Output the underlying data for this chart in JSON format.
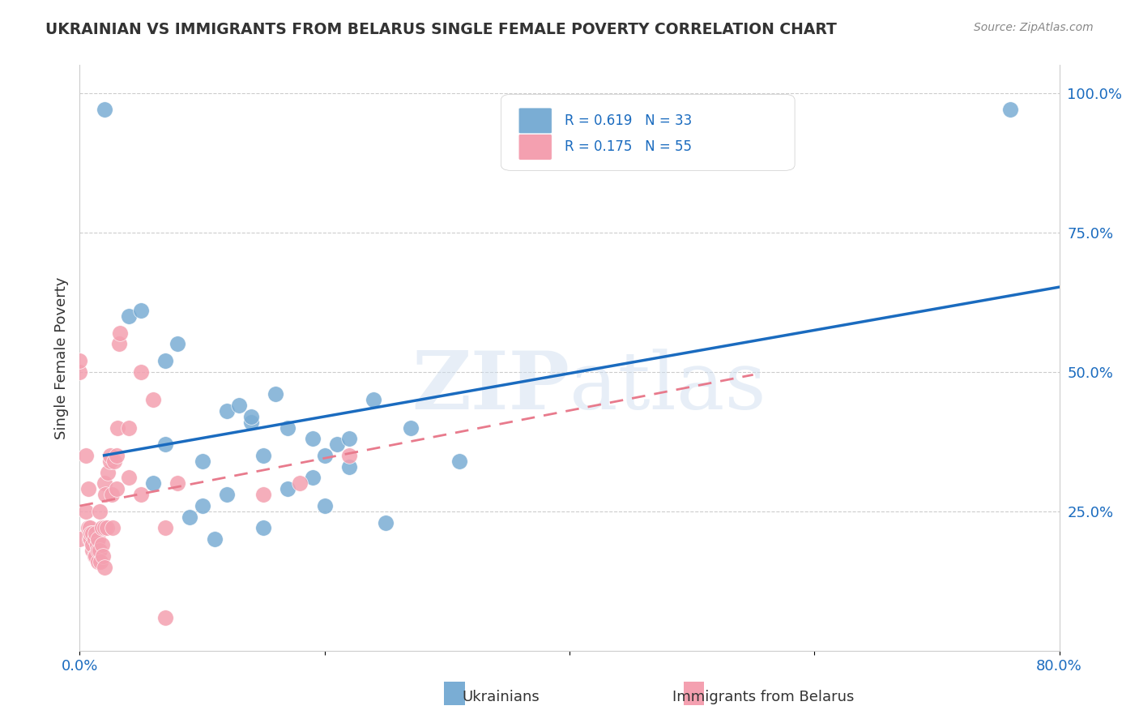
{
  "title": "UKRAINIAN VS IMMIGRANTS FROM BELARUS SINGLE FEMALE POVERTY CORRELATION CHART",
  "source": "Source: ZipAtlas.com",
  "xlabel": "",
  "ylabel": "Single Female Poverty",
  "xlim": [
    0.0,
    0.8
  ],
  "ylim": [
    0.0,
    1.05
  ],
  "xticks": [
    0.0,
    0.2,
    0.4,
    0.6,
    0.8
  ],
  "xticklabels": [
    "0.0%",
    "",
    "",
    "",
    "80.0%"
  ],
  "yticks_right": [
    0.25,
    0.5,
    0.75,
    1.0
  ],
  "yticklabels_right": [
    "25.0%",
    "50.0%",
    "75.0%",
    "100.0%"
  ],
  "grid_color": "#cccccc",
  "background_color": "#ffffff",
  "blue_color": "#7aadd4",
  "pink_color": "#f4a0b0",
  "blue_line_color": "#1a6bbf",
  "pink_line_color": "#e87a8c",
  "R_blue": 0.619,
  "N_blue": 33,
  "R_pink": 0.175,
  "N_pink": 55,
  "legend_labels": [
    "Ukrainians",
    "Immigrants from Belarus"
  ],
  "watermark": "ZIPatlas",
  "blue_points_x": [
    0.02,
    0.04,
    0.05,
    0.06,
    0.07,
    0.07,
    0.08,
    0.09,
    0.1,
    0.1,
    0.11,
    0.12,
    0.12,
    0.13,
    0.14,
    0.14,
    0.15,
    0.15,
    0.16,
    0.17,
    0.17,
    0.19,
    0.19,
    0.2,
    0.2,
    0.21,
    0.22,
    0.22,
    0.24,
    0.25,
    0.27,
    0.31,
    0.76
  ],
  "blue_points_y": [
    0.97,
    0.6,
    0.61,
    0.3,
    0.37,
    0.52,
    0.55,
    0.24,
    0.26,
    0.34,
    0.2,
    0.28,
    0.43,
    0.44,
    0.41,
    0.42,
    0.22,
    0.35,
    0.46,
    0.29,
    0.4,
    0.31,
    0.38,
    0.26,
    0.35,
    0.37,
    0.38,
    0.33,
    0.45,
    0.23,
    0.4,
    0.34,
    0.97
  ],
  "pink_points_x": [
    0.0,
    0.0,
    0.0,
    0.005,
    0.005,
    0.007,
    0.007,
    0.008,
    0.008,
    0.009,
    0.009,
    0.01,
    0.01,
    0.01,
    0.012,
    0.012,
    0.013,
    0.013,
    0.014,
    0.015,
    0.015,
    0.015,
    0.016,
    0.016,
    0.017,
    0.018,
    0.018,
    0.019,
    0.02,
    0.02,
    0.02,
    0.021,
    0.022,
    0.023,
    0.025,
    0.025,
    0.026,
    0.027,
    0.028,
    0.03,
    0.03,
    0.031,
    0.032,
    0.033,
    0.04,
    0.04,
    0.05,
    0.05,
    0.06,
    0.07,
    0.07,
    0.08,
    0.15,
    0.18,
    0.22
  ],
  "pink_points_y": [
    0.5,
    0.52,
    0.2,
    0.35,
    0.25,
    0.22,
    0.29,
    0.2,
    0.22,
    0.2,
    0.21,
    0.18,
    0.19,
    0.21,
    0.17,
    0.2,
    0.17,
    0.21,
    0.19,
    0.16,
    0.18,
    0.2,
    0.18,
    0.25,
    0.16,
    0.19,
    0.22,
    0.17,
    0.15,
    0.22,
    0.3,
    0.28,
    0.22,
    0.32,
    0.34,
    0.35,
    0.28,
    0.22,
    0.34,
    0.29,
    0.35,
    0.4,
    0.55,
    0.57,
    0.31,
    0.4,
    0.28,
    0.5,
    0.45,
    0.06,
    0.22,
    0.3,
    0.28,
    0.3,
    0.35
  ]
}
